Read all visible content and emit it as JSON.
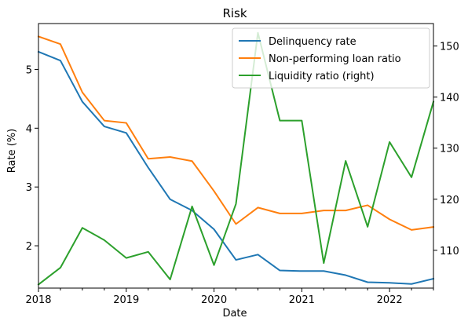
{
  "chart_data": {
    "type": "line",
    "title": "Risk",
    "xlabel": "Date",
    "ylabel": "Rate (%)",
    "x": [
      "2018-01",
      "2018-04",
      "2018-07",
      "2018-10",
      "2019-01",
      "2019-04",
      "2019-07",
      "2019-10",
      "2020-01",
      "2020-04",
      "2020-07",
      "2020-10",
      "2021-01",
      "2021-04",
      "2021-07",
      "2021-10",
      "2022-01",
      "2022-04",
      "2022-07"
    ],
    "xlim": [
      "2018-01",
      "2022-07"
    ],
    "xticks": [
      "2018",
      "2019",
      "2020",
      "2021",
      "2022"
    ],
    "ylim": [
      1.28,
      5.78
    ],
    "yticks": [
      "2",
      "3",
      "4",
      "5"
    ],
    "y2lim": [
      102.6,
      154.4
    ],
    "y2ticks": [
      "110",
      "120",
      "130",
      "140",
      "150"
    ],
    "grid": false,
    "legend_position": "top-right",
    "series": [
      {
        "name": "Delinquency rate",
        "axis": "left",
        "color": "#1f77b4",
        "values": [
          5.3,
          5.15,
          4.45,
          4.03,
          3.92,
          3.33,
          2.79,
          2.6,
          2.28,
          1.76,
          1.85,
          1.58,
          1.57,
          1.57,
          1.5,
          1.38,
          1.37,
          1.35,
          1.44
        ]
      },
      {
        "name": "Non-performing loan ratio",
        "axis": "left",
        "color": "#ff7f0e",
        "values": [
          5.56,
          5.43,
          4.61,
          4.13,
          4.09,
          3.48,
          3.51,
          3.44,
          2.93,
          2.37,
          2.65,
          2.55,
          2.55,
          2.6,
          2.6,
          2.69,
          2.45,
          2.27,
          2.32
        ]
      },
      {
        "name": "Liquidity ratio (right)",
        "axis": "right",
        "color": "#2ca02c",
        "values": [
          103.3,
          106.6,
          114.4,
          112.0,
          108.5,
          109.7,
          104.3,
          118.6,
          107.1,
          119.1,
          152.6,
          135.4,
          135.4,
          107.5,
          127.5,
          114.6,
          131.2,
          124.3,
          139.1
        ]
      }
    ]
  }
}
